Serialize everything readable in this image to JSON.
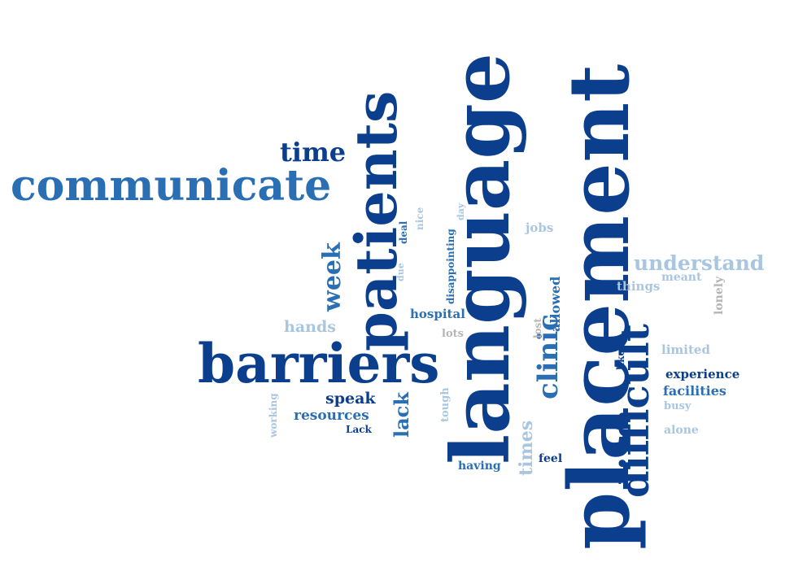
{
  "words": {
    "placement": "placement",
    "language": "language",
    "patients": "patients",
    "barriers": "barriers",
    "communicate": "communicate",
    "difficult": "difficult",
    "time": "time",
    "week": "week",
    "clinic": "clinic",
    "understand": "understand",
    "lack": "lack",
    "speak": "speak",
    "resources": "resources",
    "hospital": "hospital",
    "hands": "hands",
    "times": "times",
    "experience": "experience",
    "facilities": "facilities",
    "allowed": "allowed",
    "jobs": "jobs",
    "things": "things",
    "meant": "meant",
    "lonely": "lonely",
    "limited": "limited",
    "liked": "liked",
    "busy": "busy",
    "alone": "alone",
    "feel": "feel",
    "having": "having",
    "tough": "tough",
    "lots": "lots",
    "lost": "lost",
    "disappointing": "disappointing",
    "day": "day",
    "deal": "deal",
    "nice": "nice",
    "due": "due",
    "working": "working",
    "lack_capital": "Lack"
  },
  "colors": {
    "dark": "#0b3f8e",
    "mid": "#2a6fb3",
    "light": "#a9c6e0",
    "grey": "#b5b5b5"
  }
}
